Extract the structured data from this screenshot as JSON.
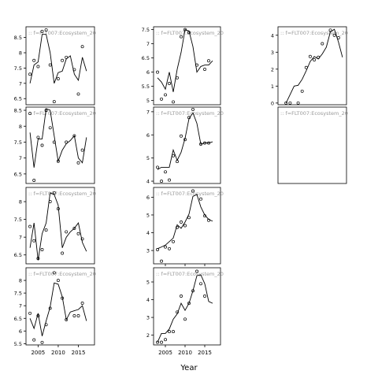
{
  "chart_data": {
    "type": "scatter",
    "layout": "faceted small multiples, 3 columns x 4 rows",
    "xlabel": "Year",
    "x_ticks": [
      2005,
      2010,
      2015
    ],
    "xlim": [
      2002,
      2019
    ],
    "series_styles": {
      "observed": "open circle points",
      "fitted": "black line"
    },
    "panels": [
      {
        "label": ":: f=FLT007:Ecosystem_20",
        "yticks": [
          6.5,
          7.0,
          7.5,
          8.0,
          8.5
        ],
        "ylim": [
          6.3,
          8.85
        ],
        "points": [
          [
            2003,
            7.3
          ],
          [
            2004,
            7.75
          ],
          [
            2005,
            7.55
          ],
          [
            2006,
            8.7
          ],
          [
            2007,
            8.75
          ],
          [
            2008,
            7.6
          ],
          [
            2009,
            6.4
          ],
          [
            2010,
            7.15
          ],
          [
            2011,
            7.75
          ],
          [
            2012,
            7.85
          ],
          [
            2014,
            7.45
          ],
          [
            2015,
            6.65
          ],
          [
            2016,
            8.2
          ]
        ],
        "line": [
          [
            2003,
            7.0
          ],
          [
            2004,
            7.6
          ],
          [
            2005,
            7.7
          ],
          [
            2006,
            8.6
          ],
          [
            2007,
            8.6
          ],
          [
            2008,
            8.0
          ],
          [
            2009,
            7.0
          ],
          [
            2010,
            7.35
          ],
          [
            2011,
            7.4
          ],
          [
            2012,
            7.8
          ],
          [
            2013,
            7.9
          ],
          [
            2014,
            7.3
          ],
          [
            2015,
            7.1
          ],
          [
            2016,
            7.85
          ],
          [
            2017,
            7.4
          ]
        ]
      },
      {
        "label": ":: f=FLT007:Ecosystem_20",
        "yticks": [
          5.0,
          5.5,
          6.0,
          6.5,
          7.0,
          7.5
        ],
        "ylim": [
          4.85,
          7.6
        ],
        "points": [
          [
            2003,
            6.0
          ],
          [
            2004,
            5.05
          ],
          [
            2005,
            5.2
          ],
          [
            2006,
            5.6
          ],
          [
            2007,
            4.95
          ],
          [
            2008,
            5.8
          ],
          [
            2009,
            7.25
          ],
          [
            2010,
            7.5
          ],
          [
            2011,
            7.4
          ],
          [
            2013,
            6.25
          ],
          [
            2015,
            6.1
          ],
          [
            2016,
            6.4
          ]
        ],
        "line": [
          [
            2003,
            5.8
          ],
          [
            2004,
            5.65
          ],
          [
            2005,
            5.4
          ],
          [
            2006,
            6.0
          ],
          [
            2007,
            5.3
          ],
          [
            2008,
            6.1
          ],
          [
            2009,
            6.7
          ],
          [
            2010,
            7.5
          ],
          [
            2011,
            7.45
          ],
          [
            2012,
            6.9
          ],
          [
            2013,
            6.0
          ],
          [
            2014,
            6.2
          ],
          [
            2015,
            6.25
          ],
          [
            2016,
            6.25
          ],
          [
            2017,
            6.4
          ]
        ]
      },
      {
        "label": ":: f=FLT007:Ecosystem_20",
        "yticks": [
          0,
          1,
          2,
          3,
          4
        ],
        "ylim": [
          -0.1,
          4.5
        ],
        "points": [
          [
            2004,
            0.0
          ],
          [
            2005,
            0.0
          ],
          [
            2007,
            0.0
          ],
          [
            2008,
            0.7
          ],
          [
            2009,
            2.1
          ],
          [
            2010,
            2.75
          ],
          [
            2011,
            2.55
          ],
          [
            2012,
            2.7
          ],
          [
            2013,
            3.5
          ],
          [
            2015,
            4.3
          ],
          [
            2016,
            4.0
          ],
          [
            2017,
            3.85
          ]
        ],
        "line": [
          [
            2004,
            0.0
          ],
          [
            2005,
            0.5
          ],
          [
            2006,
            1.0
          ],
          [
            2007,
            1.05
          ],
          [
            2008,
            1.4
          ],
          [
            2009,
            1.9
          ],
          [
            2010,
            2.45
          ],
          [
            2011,
            2.75
          ],
          [
            2012,
            2.6
          ],
          [
            2013,
            2.9
          ],
          [
            2014,
            3.3
          ],
          [
            2015,
            4.2
          ],
          [
            2016,
            4.35
          ],
          [
            2017,
            3.6
          ],
          [
            2018,
            2.7
          ]
        ]
      },
      {
        "label": ":: f=FLT007:Ecosystem_20",
        "yticks": [
          6.5,
          7.0,
          7.5,
          8.0,
          8.5
        ],
        "ylim": [
          6.2,
          8.6
        ],
        "points": [
          [
            2003,
            8.4
          ],
          [
            2004,
            6.3
          ],
          [
            2005,
            7.65
          ],
          [
            2006,
            7.4
          ],
          [
            2007,
            8.5
          ],
          [
            2008,
            7.95
          ],
          [
            2009,
            7.5
          ],
          [
            2010,
            6.9
          ],
          [
            2012,
            7.5
          ],
          [
            2014,
            7.7
          ],
          [
            2015,
            6.85
          ],
          [
            2016,
            7.25
          ]
        ],
        "line": [
          [
            2003,
            7.8
          ],
          [
            2004,
            6.7
          ],
          [
            2005,
            7.6
          ],
          [
            2006,
            7.6
          ],
          [
            2007,
            8.55
          ],
          [
            2008,
            8.5
          ],
          [
            2009,
            7.7
          ],
          [
            2010,
            6.9
          ],
          [
            2011,
            7.25
          ],
          [
            2012,
            7.45
          ],
          [
            2013,
            7.55
          ],
          [
            2014,
            7.7
          ],
          [
            2015,
            7.0
          ],
          [
            2016,
            6.85
          ],
          [
            2017,
            7.65
          ]
        ]
      },
      {
        "label": ":: f=FLT007:Ecosystem_20",
        "yticks": [
          4.0,
          5.0,
          6.0,
          7.0
        ],
        "ylim": [
          3.9,
          7.2
        ],
        "points": [
          [
            2003,
            4.6
          ],
          [
            2004,
            4.0
          ],
          [
            2005,
            4.4
          ],
          [
            2006,
            4.05
          ],
          [
            2007,
            5.1
          ],
          [
            2008,
            4.85
          ],
          [
            2009,
            5.95
          ],
          [
            2010,
            5.8
          ],
          [
            2011,
            6.75
          ],
          [
            2012,
            7.1
          ],
          [
            2014,
            5.6
          ],
          [
            2015,
            5.65
          ],
          [
            2016,
            5.65
          ]
        ],
        "line": [
          [
            2003,
            4.5
          ],
          [
            2004,
            4.6
          ],
          [
            2005,
            4.6
          ],
          [
            2006,
            4.6
          ],
          [
            2007,
            5.35
          ],
          [
            2008,
            4.9
          ],
          [
            2009,
            5.25
          ],
          [
            2010,
            5.85
          ],
          [
            2011,
            6.7
          ],
          [
            2012,
            6.95
          ],
          [
            2013,
            6.5
          ],
          [
            2014,
            5.6
          ],
          [
            2015,
            5.65
          ],
          [
            2016,
            5.65
          ],
          [
            2017,
            5.7
          ]
        ]
      },
      {
        "label": ":: f=FLT007:Ecosystem_20",
        "yticks": [],
        "ylim": [
          0,
          1
        ],
        "points": [],
        "line": []
      },
      {
        "label": ":: f=FLT007:Ecosystem_20",
        "yticks": [
          6.5,
          7.0,
          7.5,
          8.0
        ],
        "ylim": [
          6.25,
          8.4
        ],
        "points": [
          [
            2003,
            7.3
          ],
          [
            2004,
            6.9
          ],
          [
            2005,
            6.4
          ],
          [
            2006,
            6.65
          ],
          [
            2007,
            7.2
          ],
          [
            2008,
            8.0
          ],
          [
            2009,
            8.25
          ],
          [
            2010,
            7.8
          ],
          [
            2011,
            6.55
          ],
          [
            2012,
            7.15
          ],
          [
            2014,
            7.25
          ],
          [
            2015,
            7.1
          ],
          [
            2016,
            6.95
          ]
        ],
        "line": [
          [
            2003,
            6.7
          ],
          [
            2004,
            7.4
          ],
          [
            2005,
            6.35
          ],
          [
            2006,
            7.1
          ],
          [
            2007,
            7.4
          ],
          [
            2008,
            8.25
          ],
          [
            2009,
            8.2
          ],
          [
            2010,
            7.9
          ],
          [
            2011,
            6.7
          ],
          [
            2012,
            7.0
          ],
          [
            2013,
            7.15
          ],
          [
            2014,
            7.25
          ],
          [
            2015,
            7.4
          ],
          [
            2016,
            6.85
          ],
          [
            2017,
            6.6
          ]
        ]
      },
      {
        "label": ":: f=FLT007:Ecosystem_20",
        "yticks": [
          3,
          4,
          5,
          6
        ],
        "ylim": [
          2.25,
          6.55
        ],
        "points": [
          [
            2003,
            3.05
          ],
          [
            2004,
            2.4
          ],
          [
            2005,
            3.2
          ],
          [
            2006,
            3.1
          ],
          [
            2007,
            3.5
          ],
          [
            2008,
            4.3
          ],
          [
            2009,
            4.6
          ],
          [
            2010,
            4.4
          ],
          [
            2011,
            4.85
          ],
          [
            2012,
            6.35
          ],
          [
            2014,
            5.9
          ],
          [
            2015,
            4.95
          ],
          [
            2016,
            4.7
          ]
        ],
        "line": [
          [
            2003,
            3.1
          ],
          [
            2004,
            3.2
          ],
          [
            2005,
            3.3
          ],
          [
            2006,
            3.5
          ],
          [
            2007,
            3.7
          ],
          [
            2008,
            4.45
          ],
          [
            2009,
            4.25
          ],
          [
            2010,
            4.6
          ],
          [
            2011,
            5.05
          ],
          [
            2012,
            6.05
          ],
          [
            2013,
            6.15
          ],
          [
            2014,
            5.45
          ],
          [
            2015,
            5.0
          ],
          [
            2016,
            4.75
          ],
          [
            2017,
            4.65
          ]
        ]
      },
      {
        "label": "",
        "yticks": [],
        "ylim": [
          0,
          1
        ],
        "points": [],
        "line": []
      },
      {
        "label": ":: f=FLT007:Ecosystem_20",
        "yticks": [
          5.5,
          6.0,
          6.5,
          7.0,
          7.5,
          8.0
        ],
        "ylim": [
          5.45,
          8.5
        ],
        "points": [
          [
            2003,
            6.7
          ],
          [
            2004,
            5.65
          ],
          [
            2005,
            6.6
          ],
          [
            2006,
            5.55
          ],
          [
            2007,
            6.25
          ],
          [
            2008,
            6.9
          ],
          [
            2009,
            8.3
          ],
          [
            2010,
            8.0
          ],
          [
            2011,
            7.3
          ],
          [
            2012,
            6.45
          ],
          [
            2014,
            6.6
          ],
          [
            2015,
            6.6
          ],
          [
            2016,
            7.1
          ]
        ],
        "line": [
          [
            2003,
            6.5
          ],
          [
            2004,
            6.1
          ],
          [
            2005,
            6.7
          ],
          [
            2006,
            5.8
          ],
          [
            2007,
            6.4
          ],
          [
            2008,
            6.95
          ],
          [
            2009,
            7.9
          ],
          [
            2010,
            7.85
          ],
          [
            2011,
            7.35
          ],
          [
            2012,
            6.45
          ],
          [
            2013,
            6.75
          ],
          [
            2014,
            6.8
          ],
          [
            2015,
            6.85
          ],
          [
            2016,
            7.0
          ],
          [
            2017,
            6.4
          ]
        ]
      },
      {
        "label": ":: f=FLT007:Ecosystem_20",
        "yticks": [
          2,
          3,
          4,
          5
        ],
        "ylim": [
          1.45,
          5.8
        ],
        "points": [
          [
            2003,
            1.6
          ],
          [
            2004,
            1.6
          ],
          [
            2005,
            1.75
          ],
          [
            2006,
            2.2
          ],
          [
            2007,
            2.2
          ],
          [
            2008,
            3.3
          ],
          [
            2009,
            4.2
          ],
          [
            2010,
            2.9
          ],
          [
            2011,
            3.8
          ],
          [
            2012,
            4.5
          ],
          [
            2013,
            5.6
          ],
          [
            2014,
            4.9
          ],
          [
            2015,
            4.2
          ]
        ],
        "line": [
          [
            2003,
            1.6
          ],
          [
            2004,
            2.1
          ],
          [
            2005,
            2.1
          ],
          [
            2006,
            2.35
          ],
          [
            2007,
            2.9
          ],
          [
            2008,
            3.2
          ],
          [
            2009,
            3.8
          ],
          [
            2010,
            3.4
          ],
          [
            2011,
            3.8
          ],
          [
            2012,
            4.5
          ],
          [
            2013,
            5.35
          ],
          [
            2014,
            5.4
          ],
          [
            2015,
            4.9
          ],
          [
            2016,
            3.9
          ],
          [
            2017,
            3.8
          ]
        ]
      },
      {
        "label": "",
        "yticks": [],
        "ylim": [
          0,
          1
        ],
        "points": [],
        "line": []
      }
    ]
  }
}
